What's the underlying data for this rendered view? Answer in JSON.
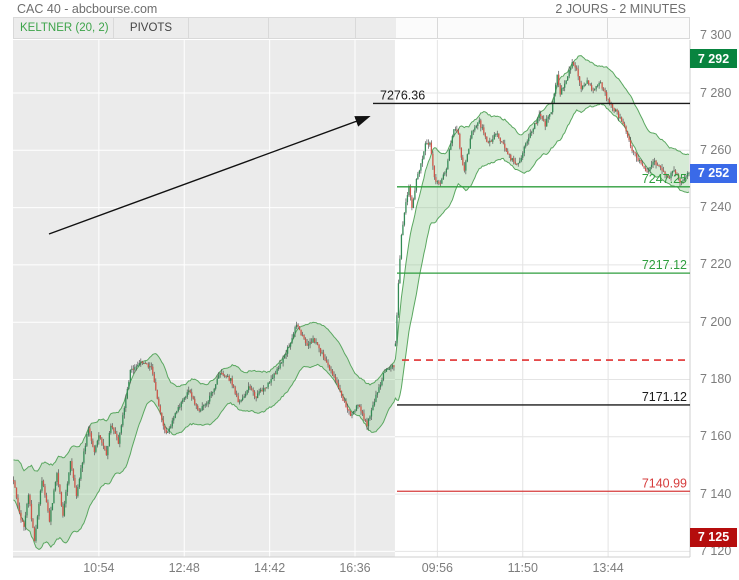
{
  "header": {
    "title": "CAC 40 - abcbourse.com",
    "timeframe": "2 JOURS - 2 MINUTES"
  },
  "tabs": [
    {
      "label": "KELTNER (20, 2)",
      "color": "#3da44a"
    },
    {
      "label": "PIVOTS",
      "color": "#444444"
    },
    {
      "label": "",
      "color": "#444444"
    },
    {
      "label": "",
      "color": "#444444"
    },
    {
      "label": "",
      "color": "#444444"
    },
    {
      "label": "",
      "color": "#444444"
    },
    {
      "label": "",
      "color": "#444444"
    },
    {
      "label": "",
      "color": "#444444"
    }
  ],
  "chart_data": {
    "type": "candlestick",
    "title": "CAC 40 - abcbourse.com",
    "timeframe_label": "2 JOURS - 2 MINUTES",
    "overlay_indicators": [
      "KELTNER (20, 2)",
      "PIVOTS"
    ],
    "keltner": {
      "period": 20,
      "multiplier": 2
    },
    "y_axis": {
      "min": 7118,
      "max": 7298,
      "ticks": [
        {
          "label": "7 300",
          "price": 7300
        },
        {
          "label": "7 280",
          "price": 7280
        },
        {
          "label": "7 260",
          "price": 7260
        },
        {
          "label": "7 240",
          "price": 7240
        },
        {
          "label": "7 220",
          "price": 7220
        },
        {
          "label": "7 200",
          "price": 7200
        },
        {
          "label": "7 180",
          "price": 7180
        },
        {
          "label": "7 160",
          "price": 7160
        },
        {
          "label": "7 140",
          "price": 7140
        },
        {
          "label": "7 120",
          "price": 7120
        }
      ]
    },
    "x_axis": {
      "labels": [
        {
          "label": "10:54",
          "bar": 57
        },
        {
          "label": "12:48",
          "bar": 114
        },
        {
          "label": "14:42",
          "bar": 171
        },
        {
          "label": "16:36",
          "bar": 228
        },
        {
          "label": "09:56",
          "bar": 283
        },
        {
          "label": "11:50",
          "bar": 340
        },
        {
          "label": "13:44",
          "bar": 397
        }
      ]
    },
    "sessions": [
      {
        "name": "previous-day",
        "bars": 255,
        "background": "#ebebeb"
      },
      {
        "name": "current-day",
        "bars": 197,
        "background": "#ffffff"
      }
    ],
    "price_anchors": [
      [
        0,
        7145
      ],
      [
        4,
        7133
      ],
      [
        7,
        7128
      ],
      [
        10,
        7140
      ],
      [
        14,
        7124
      ],
      [
        19,
        7145
      ],
      [
        24,
        7131
      ],
      [
        29,
        7147
      ],
      [
        33,
        7133
      ],
      [
        38,
        7151
      ],
      [
        42,
        7140
      ],
      [
        50,
        7163
      ],
      [
        54,
        7155
      ],
      [
        57,
        7160
      ],
      [
        62,
        7154
      ],
      [
        65,
        7164
      ],
      [
        70,
        7158
      ],
      [
        78,
        7183
      ],
      [
        85,
        7186
      ],
      [
        92,
        7184
      ],
      [
        99,
        7166
      ],
      [
        102,
        7161
      ],
      [
        110,
        7170
      ],
      [
        117,
        7176
      ],
      [
        124,
        7169
      ],
      [
        130,
        7173
      ],
      [
        138,
        7182
      ],
      [
        145,
        7180
      ],
      [
        150,
        7172
      ],
      [
        157,
        7177
      ],
      [
        162,
        7174
      ],
      [
        169,
        7178
      ],
      [
        176,
        7183
      ],
      [
        184,
        7192
      ],
      [
        189,
        7199
      ],
      [
        196,
        7192
      ],
      [
        200,
        7194
      ],
      [
        207,
        7188
      ],
      [
        214,
        7181
      ],
      [
        221,
        7172
      ],
      [
        225,
        7168
      ],
      [
        230,
        7171
      ],
      [
        236,
        7164
      ],
      [
        243,
        7176
      ],
      [
        248,
        7183
      ],
      [
        254,
        7185
      ],
      [
        255,
        7192
      ],
      [
        257,
        7214
      ],
      [
        259,
        7230
      ],
      [
        262,
        7242
      ],
      [
        264,
        7247
      ],
      [
        266,
        7240
      ],
      [
        269,
        7250
      ],
      [
        272,
        7255
      ],
      [
        275,
        7262
      ],
      [
        278,
        7263
      ],
      [
        281,
        7250
      ],
      [
        285,
        7248
      ],
      [
        289,
        7254
      ],
      [
        294,
        7268
      ],
      [
        297,
        7266
      ],
      [
        299,
        7257
      ],
      [
        301,
        7253
      ],
      [
        306,
        7266
      ],
      [
        311,
        7270
      ],
      [
        317,
        7262
      ],
      [
        322,
        7266
      ],
      [
        327,
        7262
      ],
      [
        332,
        7257
      ],
      [
        337,
        7255
      ],
      [
        342,
        7262
      ],
      [
        347,
        7268
      ],
      [
        351,
        7272
      ],
      [
        355,
        7269
      ],
      [
        359,
        7274
      ],
      [
        363,
        7286
      ],
      [
        365,
        7280
      ],
      [
        369,
        7285
      ],
      [
        373,
        7291
      ],
      [
        376,
        7288
      ],
      [
        379,
        7281
      ],
      [
        383,
        7284
      ],
      [
        387,
        7281
      ],
      [
        391,
        7284
      ],
      [
        394,
        7281
      ],
      [
        398,
        7276
      ],
      [
        403,
        7273
      ],
      [
        408,
        7268
      ],
      [
        413,
        7260
      ],
      [
        418,
        7256
      ],
      [
        423,
        7253
      ],
      [
        428,
        7256
      ],
      [
        433,
        7253
      ],
      [
        437,
        7250
      ],
      [
        441,
        7253
      ],
      [
        445,
        7249
      ],
      [
        451,
        7252
      ]
    ],
    "levels": [
      {
        "label": "7276.36",
        "price": 7276.36,
        "color": "#1a1a1a",
        "style": "solid",
        "label_align": "left"
      },
      {
        "label": "7247.25",
        "price": 7247.25,
        "color": "#2f9e3e",
        "style": "solid",
        "label_align": "right"
      },
      {
        "label": "7217.12",
        "price": 7217.12,
        "color": "#2f9e3e",
        "style": "solid",
        "label_align": "right"
      },
      {
        "label": "",
        "price": 7186.8,
        "color": "#e03131",
        "style": "dashed",
        "label_align": "none"
      },
      {
        "label": "7171.12",
        "price": 7171.12,
        "color": "#1a1a1a",
        "style": "solid",
        "label_align": "right"
      },
      {
        "label": "7140.99",
        "price": 7140.99,
        "color": "#d63c3c",
        "style": "solid",
        "label_align": "right"
      }
    ],
    "badges": [
      {
        "label": "7 292",
        "price": 7292,
        "color": "#08843f",
        "role": "session-high"
      },
      {
        "label": "7 252",
        "price": 7252,
        "color": "#3a6ae8",
        "role": "last-price"
      },
      {
        "label": "7 125",
        "price": 7125,
        "color": "#b50d0d",
        "role": "session-low"
      }
    ],
    "last_price": 7252,
    "session_high": 7292,
    "session_low": 7125,
    "annotation_arrow": {
      "note": "trend arrow pointing to resistance 7276.36"
    },
    "colors": {
      "candle_up": "#338a55",
      "candle_down": "#cf5448",
      "wick": "#555555",
      "channel_line": "#5aa760",
      "channel_fill": "rgba(130,195,130,0.33)",
      "grid_on_gray": "#ffffff",
      "grid_on_white": "#e4e4e4",
      "axis_line": "#cfcfcf",
      "tick_text": "#7d7d7d"
    }
  }
}
